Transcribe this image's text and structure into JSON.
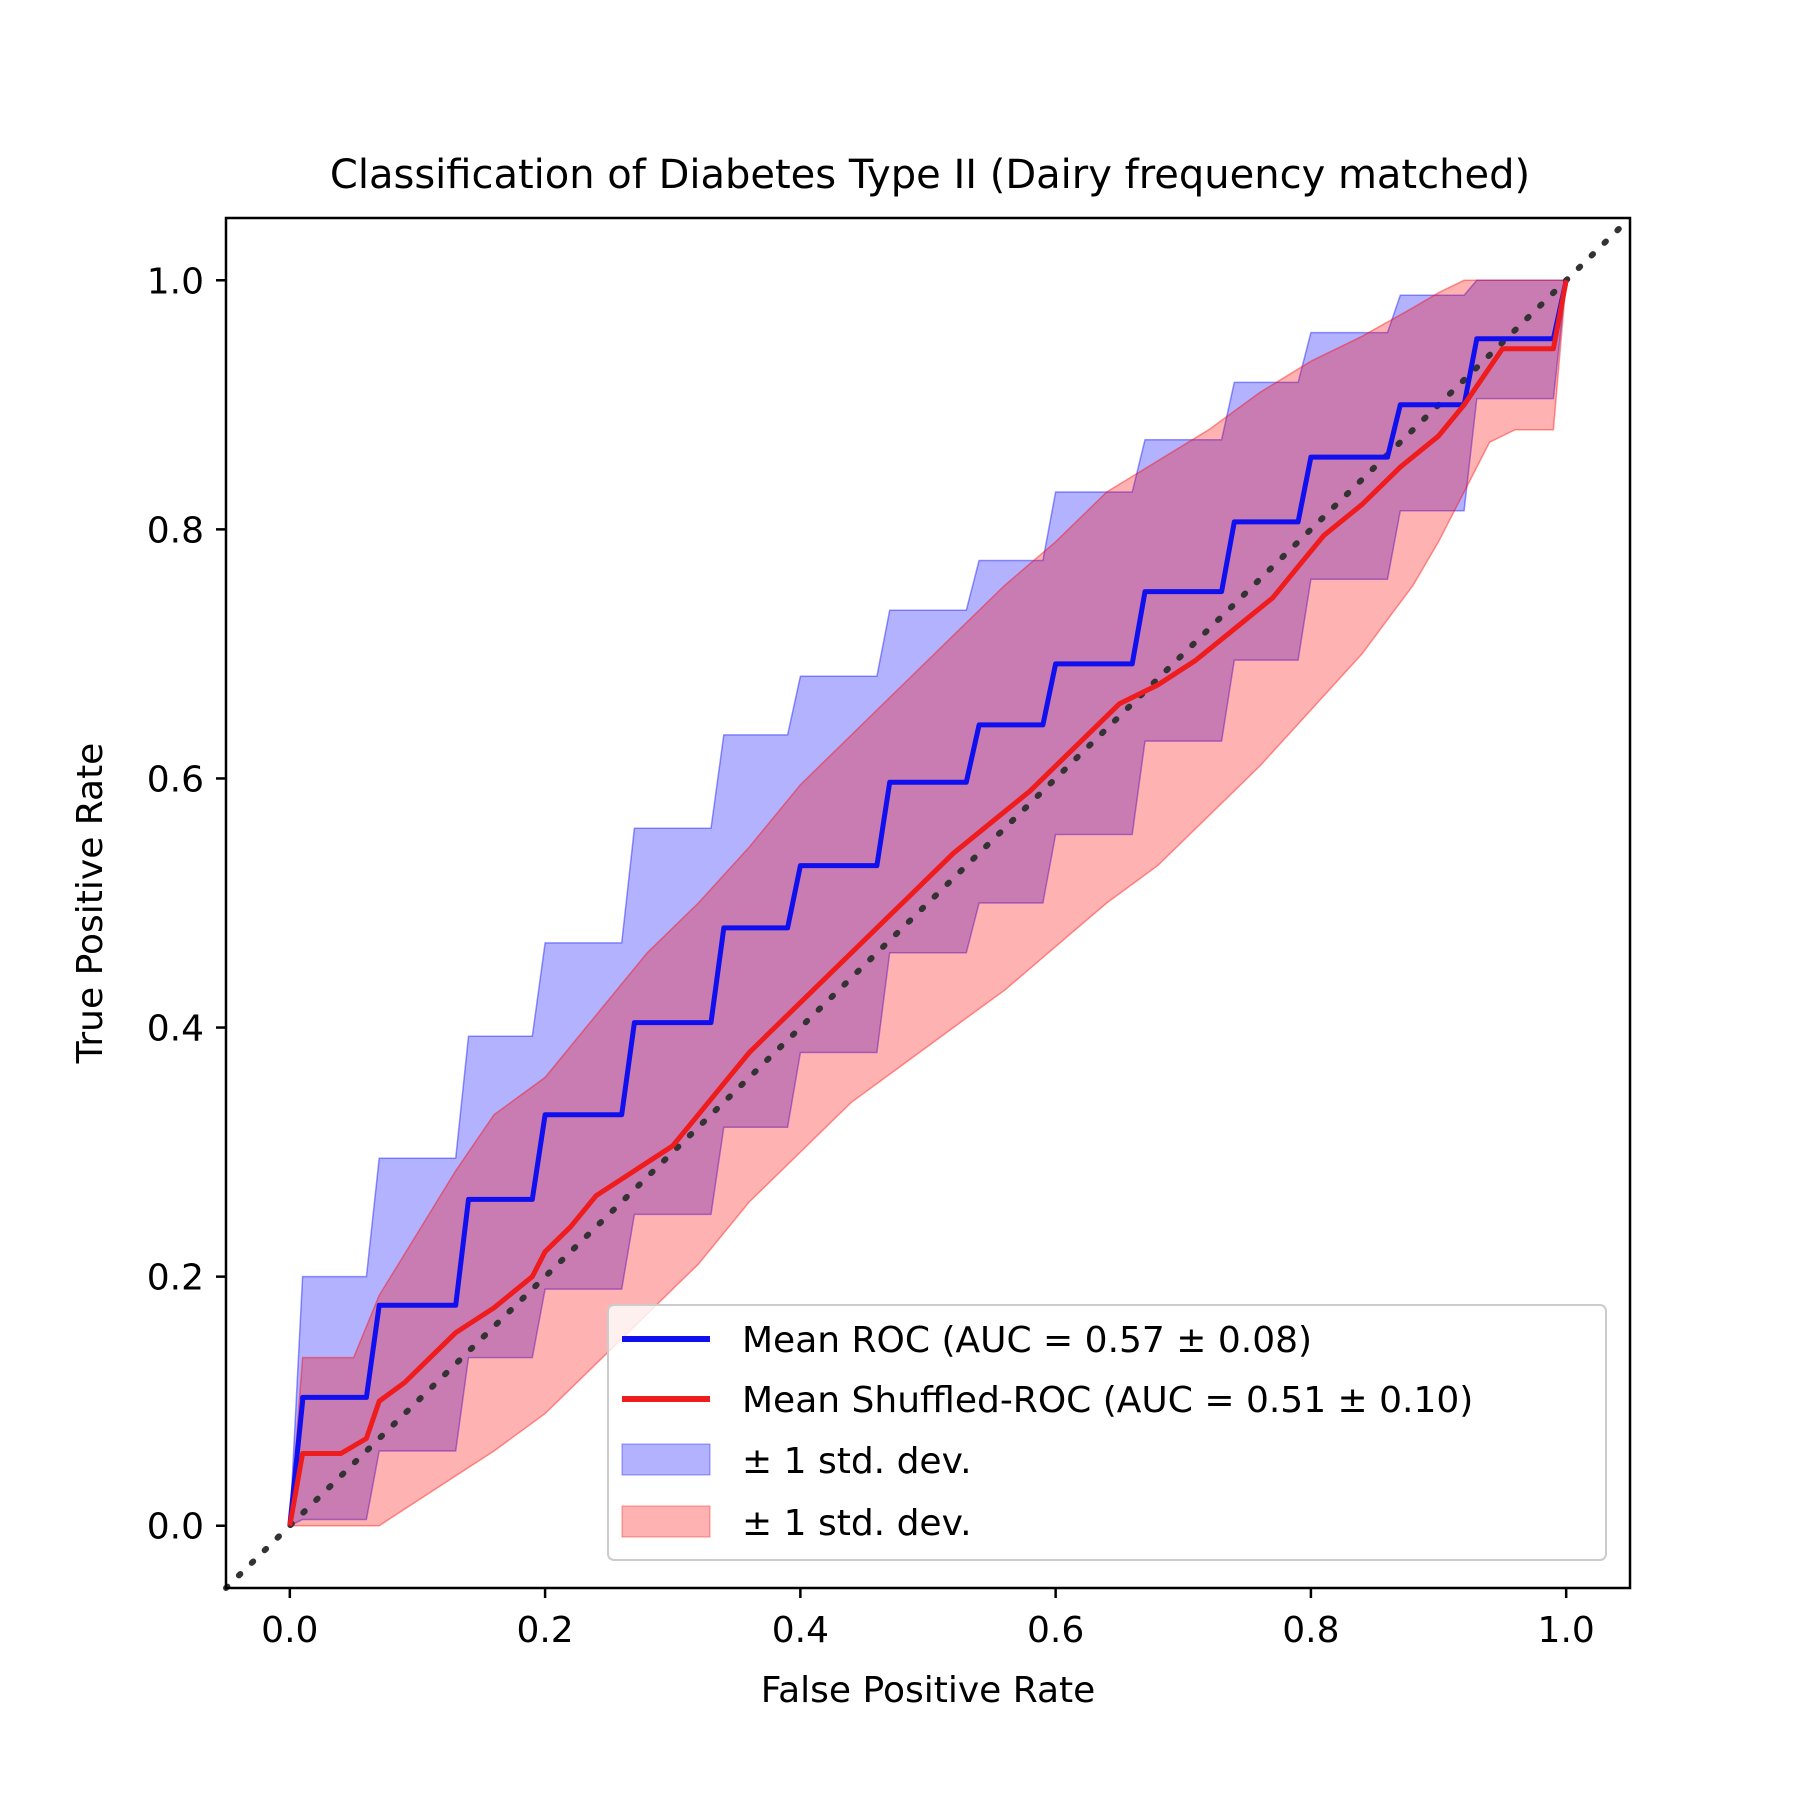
{
  "chart_data": {
    "type": "line",
    "title": "Classification of Diabetes Type II (Dairy frequency matched)",
    "xlabel": "False Positive Rate",
    "ylabel": "True Positive Rate",
    "xlim": [
      -0.05,
      1.05
    ],
    "ylim": [
      -0.05,
      1.05
    ],
    "xticks": [
      "0.0",
      "0.2",
      "0.4",
      "0.6",
      "0.8",
      "1.0"
    ],
    "yticks": [
      "0.0",
      "0.2",
      "0.4",
      "0.6",
      "0.8",
      "1.0"
    ],
    "grid": false,
    "legend_position": "lower-right",
    "diagonal": {
      "x": [
        -0.05,
        1.05
      ],
      "y": [
        -0.05,
        1.05
      ],
      "style": "dotted",
      "color": "#333333"
    },
    "series": [
      {
        "name": "Mean ROC (AUC = 0.57 ± 0.08)",
        "color": "#1010ee",
        "x": [
          0.0,
          0.01,
          0.01,
          0.06,
          0.07,
          0.13,
          0.14,
          0.19,
          0.2,
          0.26,
          0.27,
          0.33,
          0.34,
          0.39,
          0.4,
          0.46,
          0.47,
          0.53,
          0.54,
          0.59,
          0.6,
          0.66,
          0.67,
          0.73,
          0.74,
          0.79,
          0.8,
          0.86,
          0.87,
          0.92,
          0.93,
          0.99,
          1.0
        ],
        "y": [
          0.0,
          0.1,
          0.103,
          0.103,
          0.177,
          0.177,
          0.262,
          0.262,
          0.33,
          0.33,
          0.404,
          0.404,
          0.48,
          0.48,
          0.53,
          0.53,
          0.597,
          0.597,
          0.643,
          0.643,
          0.692,
          0.692,
          0.75,
          0.75,
          0.806,
          0.806,
          0.858,
          0.858,
          0.9,
          0.9,
          0.953,
          0.953,
          1.0
        ]
      },
      {
        "name": "Mean Shuffled-ROC (AUC = 0.51 ± 0.10)",
        "color": "#ee1c1c",
        "x": [
          0.0,
          0.01,
          0.04,
          0.06,
          0.07,
          0.09,
          0.11,
          0.13,
          0.16,
          0.19,
          0.2,
          0.22,
          0.24,
          0.27,
          0.3,
          0.32,
          0.34,
          0.36,
          0.38,
          0.4,
          0.42,
          0.44,
          0.46,
          0.48,
          0.5,
          0.52,
          0.55,
          0.58,
          0.6,
          0.62,
          0.65,
          0.68,
          0.71,
          0.74,
          0.77,
          0.79,
          0.81,
          0.84,
          0.87,
          0.9,
          0.92,
          0.94,
          0.95,
          0.99,
          1.0
        ],
        "y": [
          0.0,
          0.058,
          0.058,
          0.07,
          0.1,
          0.115,
          0.135,
          0.155,
          0.175,
          0.2,
          0.22,
          0.24,
          0.265,
          0.285,
          0.305,
          0.33,
          0.355,
          0.38,
          0.4,
          0.42,
          0.44,
          0.46,
          0.48,
          0.5,
          0.52,
          0.54,
          0.565,
          0.59,
          0.61,
          0.63,
          0.66,
          0.675,
          0.695,
          0.72,
          0.745,
          0.77,
          0.795,
          0.82,
          0.85,
          0.875,
          0.9,
          0.93,
          0.945,
          0.945,
          1.0
        ]
      }
    ],
    "bands": [
      {
        "name": "± 1 std. dev.",
        "color": "#0000ff",
        "opacity": 0.3,
        "x": [
          0.0,
          0.01,
          0.06,
          0.07,
          0.13,
          0.14,
          0.19,
          0.2,
          0.26,
          0.27,
          0.33,
          0.34,
          0.39,
          0.4,
          0.46,
          0.47,
          0.53,
          0.54,
          0.59,
          0.6,
          0.66,
          0.67,
          0.73,
          0.74,
          0.79,
          0.8,
          0.86,
          0.87,
          0.92,
          0.93,
          0.99,
          1.0
        ],
        "upper": [
          0.0,
          0.2,
          0.2,
          0.295,
          0.295,
          0.393,
          0.393,
          0.468,
          0.468,
          0.56,
          0.56,
          0.635,
          0.635,
          0.682,
          0.682,
          0.735,
          0.735,
          0.775,
          0.775,
          0.83,
          0.83,
          0.872,
          0.872,
          0.918,
          0.918,
          0.958,
          0.958,
          0.988,
          0.988,
          1.0,
          1.0,
          1.0
        ],
        "lower": [
          0.0,
          0.005,
          0.005,
          0.06,
          0.06,
          0.135,
          0.135,
          0.19,
          0.19,
          0.25,
          0.25,
          0.32,
          0.32,
          0.38,
          0.38,
          0.46,
          0.46,
          0.5,
          0.5,
          0.555,
          0.555,
          0.63,
          0.63,
          0.695,
          0.695,
          0.76,
          0.76,
          0.815,
          0.815,
          0.905,
          0.905,
          1.0
        ]
      },
      {
        "name": "± 1 std. dev.",
        "color": "#ff0000",
        "opacity": 0.3,
        "x": [
          0.0,
          0.01,
          0.05,
          0.07,
          0.1,
          0.13,
          0.16,
          0.2,
          0.24,
          0.28,
          0.32,
          0.36,
          0.4,
          0.44,
          0.48,
          0.52,
          0.56,
          0.6,
          0.64,
          0.68,
          0.72,
          0.76,
          0.8,
          0.84,
          0.88,
          0.9,
          0.92,
          0.94,
          0.96,
          0.99,
          1.0
        ],
        "upper": [
          0.0,
          0.135,
          0.135,
          0.185,
          0.235,
          0.285,
          0.33,
          0.36,
          0.41,
          0.46,
          0.5,
          0.545,
          0.595,
          0.635,
          0.675,
          0.715,
          0.755,
          0.79,
          0.83,
          0.855,
          0.88,
          0.91,
          0.935,
          0.955,
          0.978,
          0.99,
          1.0,
          1.0,
          1.0,
          1.0,
          1.0
        ],
        "lower": [
          0.0,
          0.0,
          0.0,
          0.0,
          0.02,
          0.04,
          0.06,
          0.09,
          0.13,
          0.17,
          0.21,
          0.26,
          0.3,
          0.34,
          0.37,
          0.4,
          0.43,
          0.465,
          0.5,
          0.53,
          0.57,
          0.61,
          0.655,
          0.7,
          0.755,
          0.79,
          0.83,
          0.87,
          0.88,
          0.88,
          1.0
        ]
      }
    ]
  }
}
